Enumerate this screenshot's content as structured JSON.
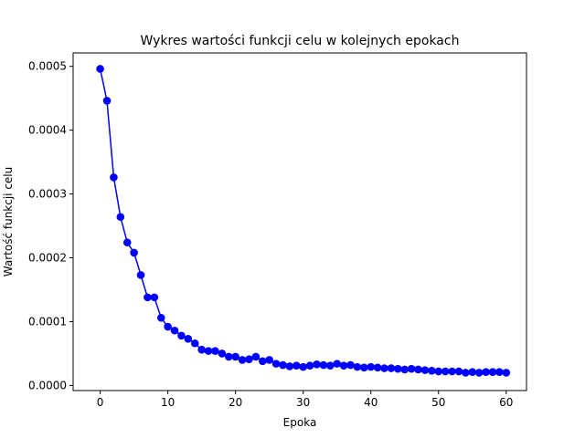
{
  "chart_data": {
    "type": "line",
    "title": "Wykres wartości funkcji celu w kolejnych epokach",
    "xlabel": "Epoka",
    "ylabel": "Wartość funkcji celu",
    "xlim": [
      -4,
      63
    ],
    "ylim": [
      -8e-06,
      0.000521
    ],
    "x_ticks": [
      0,
      10,
      20,
      30,
      40,
      50,
      60
    ],
    "x_tick_labels": [
      "0",
      "10",
      "20",
      "30",
      "40",
      "50",
      "60"
    ],
    "y_ticks": [
      0,
      0.0001,
      0.0002,
      0.0003,
      0.0004,
      0.0005
    ],
    "y_tick_labels": [
      "0.0000",
      "0.0001",
      "0.0002",
      "0.0003",
      "0.0004",
      "0.0005"
    ],
    "grid": false,
    "series_color": "#0000ff",
    "x": [
      0,
      1,
      2,
      3,
      4,
      5,
      6,
      7,
      8,
      9,
      10,
      11,
      12,
      13,
      14,
      15,
      16,
      17,
      18,
      19,
      20,
      21,
      22,
      23,
      24,
      25,
      26,
      27,
      28,
      29,
      30,
      31,
      32,
      33,
      34,
      35,
      36,
      37,
      38,
      39,
      40,
      41,
      42,
      43,
      44,
      45,
      46,
      47,
      48,
      49,
      50,
      51,
      52,
      53,
      54,
      55,
      56,
      57,
      58,
      59,
      60
    ],
    "values": [
      0.000496,
      0.000446,
      0.000326,
      0.000264,
      0.000224,
      0.000208,
      0.000173,
      0.000138,
      0.000138,
      0.000106,
      9.2e-05,
      8.6e-05,
      7.8e-05,
      7.3e-05,
      6.6e-05,
      5.6e-05,
      5.4e-05,
      5.4e-05,
      5e-05,
      4.5e-05,
      4.5e-05,
      4e-05,
      4.1e-05,
      4.5e-05,
      3.8e-05,
      4e-05,
      3.4e-05,
      3.2e-05,
      3e-05,
      3.1e-05,
      2.9e-05,
      3.1e-05,
      3.3e-05,
      3.2e-05,
      3.1e-05,
      3.4e-05,
      3.1e-05,
      3.2e-05,
      2.9e-05,
      2.8e-05,
      2.9e-05,
      2.8e-05,
      2.7e-05,
      2.7e-05,
      2.6e-05,
      2.5e-05,
      2.6e-05,
      2.5e-05,
      2.4e-05,
      2.3e-05,
      2.2e-05,
      2.2e-05,
      2.2e-05,
      2.2e-05,
      2e-05,
      2.1e-05,
      2e-05,
      2.1e-05,
      2.1e-05,
      2.1e-05,
      2e-05
    ]
  }
}
